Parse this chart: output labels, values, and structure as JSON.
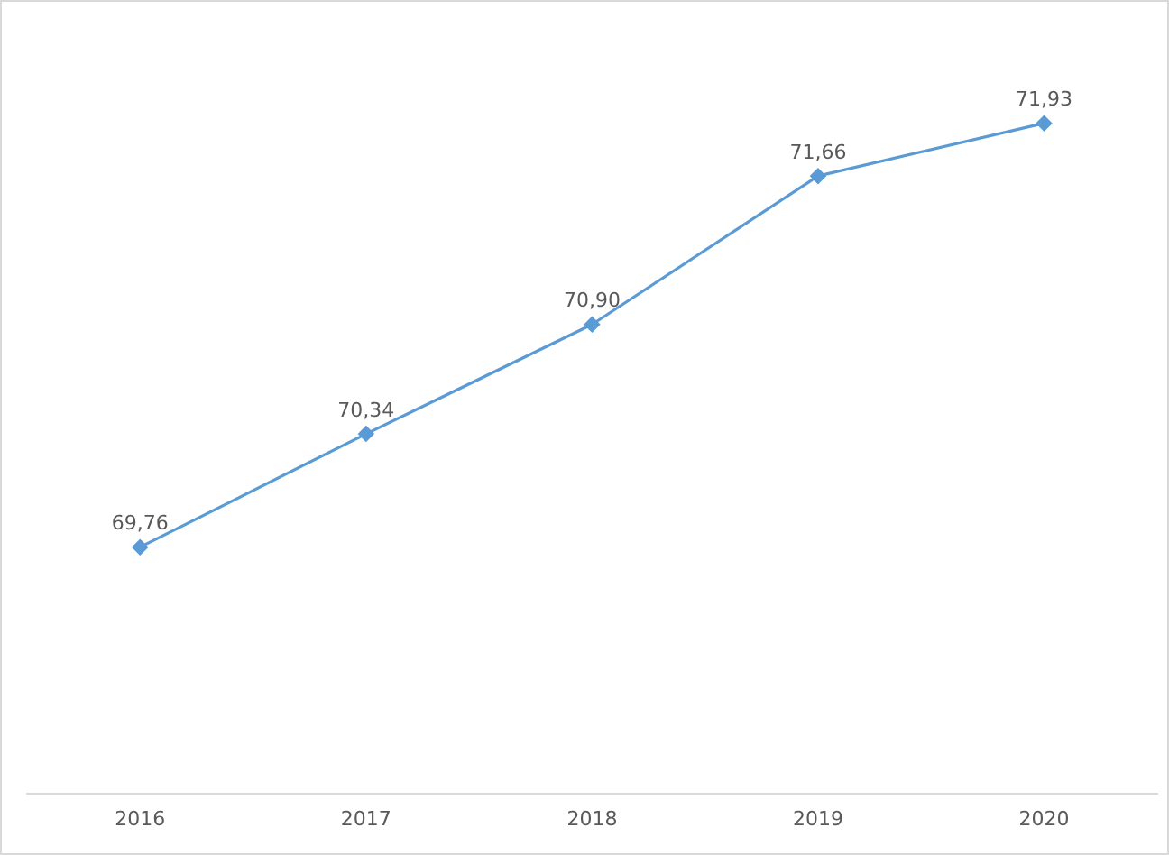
{
  "chart_data": {
    "type": "line",
    "categories": [
      "2016",
      "2017",
      "2018",
      "2019",
      "2020"
    ],
    "series": [
      {
        "color": "#5b9bd5",
        "values": [
          69.76,
          70.34,
          70.9,
          71.66,
          71.93
        ],
        "value_labels": [
          "69,76",
          "70,34",
          "70,90",
          "71,66",
          "71,93"
        ]
      }
    ],
    "tick_labels": "x",
    "grid": false,
    "legend": false,
    "marker": "diamond",
    "line_style": "solid"
  }
}
